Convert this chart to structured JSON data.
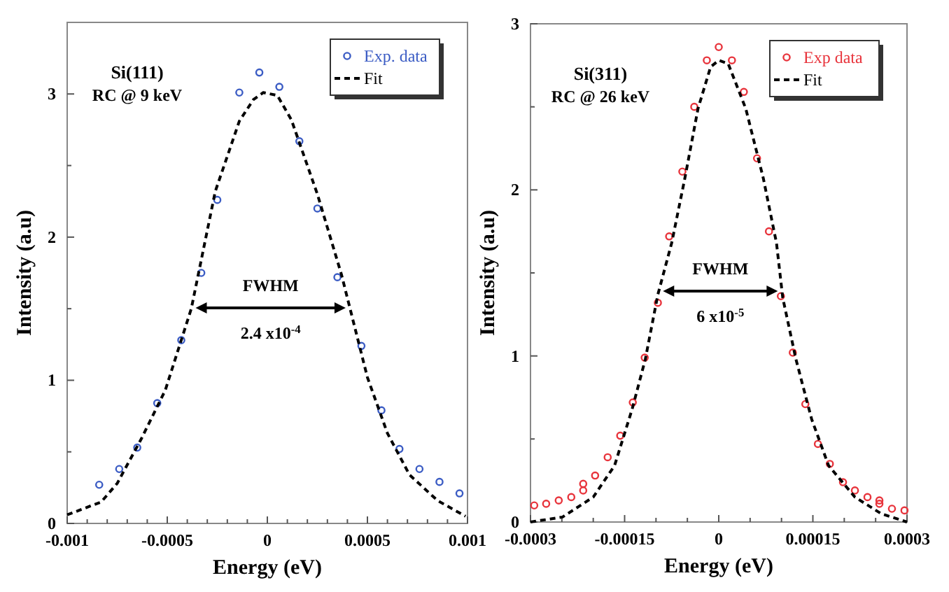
{
  "chart_data": [
    {
      "type": "scatter",
      "xlabel": "Energy (eV)",
      "ylabel": "Intensity (a.u)",
      "xlim": [
        -0.001,
        0.001
      ],
      "ylim": [
        0,
        3.5
      ],
      "xticks": [
        -0.001,
        {
          "value": -0.0009,
          "label": null
        },
        {
          "value": -0.0008,
          "label": null
        },
        {
          "value": -0.0007,
          "label": null
        },
        {
          "value": -0.0006,
          "label": null
        },
        -0.0005,
        {
          "value": -0.0004,
          "label": null
        },
        {
          "value": -0.0003,
          "label": null
        },
        {
          "value": -0.0002,
          "label": null
        },
        {
          "value": -0.0001,
          "label": null
        },
        0,
        {
          "value": 0.0001,
          "label": null
        },
        {
          "value": 0.0002,
          "label": null
        },
        {
          "value": 0.0003,
          "label": null
        },
        {
          "value": 0.0004,
          "label": null
        },
        0.0005,
        {
          "value": 0.0006,
          "label": null
        },
        {
          "value": 0.0007,
          "label": null
        },
        {
          "value": 0.0008,
          "label": null
        },
        {
          "value": 0.0009,
          "label": null
        },
        0.001
      ],
      "yticks": [
        0,
        {
          "value": 0.5,
          "label": null
        },
        1,
        {
          "value": 1.5,
          "label": null
        },
        2,
        {
          "value": 2.5,
          "label": null
        },
        3
      ],
      "grid": false,
      "legend": "top right",
      "annotations": [
        "Si(111)",
        "RC @ 9 keV",
        "FWHM",
        "2.4 x10$^{-4}$"
      ],
      "series": [
        {
          "name": "Exp. data",
          "marker": "circle",
          "color": "#3b5cc4",
          "x": [
            -0.00084,
            -0.00074,
            -0.00065,
            -0.00055,
            -0.00043,
            -0.00033,
            -0.00025,
            -0.00014,
            -4e-05,
            6e-05,
            0.00016,
            0.00025,
            0.00035,
            0.00047,
            0.00057,
            0.00066,
            0.00076,
            0.00086,
            0.00096
          ],
          "values": [
            0.27,
            0.38,
            0.53,
            0.84,
            1.28,
            1.75,
            2.26,
            3.01,
            3.15,
            3.05,
            2.67,
            2.2,
            1.72,
            1.24,
            0.79,
            0.52,
            0.38,
            0.29,
            0.21
          ]
        },
        {
          "name": "Fit",
          "type": "line",
          "line_style": "dashed",
          "color": "#000000",
          "x": [
            -0.001,
            -0.00083,
            -0.00075,
            -0.00063,
            -0.00051,
            -0.00038,
            -0.00026,
            -0.00014,
            -7e-05,
            -2e-05,
            5e-05,
            0.00012,
            0.00025,
            0.00037,
            0.0005,
            0.0006,
            0.00071,
            0.00085,
            0.00099
          ],
          "values": [
            0.06,
            0.15,
            0.28,
            0.59,
            0.93,
            1.5,
            2.32,
            2.81,
            2.96,
            3.01,
            2.99,
            2.82,
            2.3,
            1.74,
            1.02,
            0.63,
            0.34,
            0.16,
            0.05
          ]
        }
      ]
    },
    {
      "type": "scatter",
      "xlabel": "Energy (eV)",
      "ylabel": "Intensity (a.u)",
      "xlim": [
        -0.0003,
        0.0003
      ],
      "ylim": [
        0,
        3
      ],
      "xticks": [
        -0.0003,
        {
          "value": -0.00025,
          "label": null
        },
        {
          "value": -0.0002,
          "label": null
        },
        -0.00015,
        {
          "value": -0.0001,
          "label": null
        },
        {
          "value": -5e-05,
          "label": null
        },
        0,
        {
          "value": 5e-05,
          "label": null
        },
        {
          "value": 0.0001,
          "label": null
        },
        0.00015,
        {
          "value": 0.0002,
          "label": null
        },
        {
          "value": 0.00025,
          "label": null
        },
        0.0003
      ],
      "yticks": [
        0,
        {
          "value": 0.5,
          "label": null
        },
        1,
        {
          "value": 1.5,
          "label": null
        },
        2,
        {
          "value": 2.5,
          "label": null
        },
        3
      ],
      "grid": false,
      "legend": "top right",
      "annotations": [
        "Si(311)",
        "RC @ 26 keV",
        "FWHM",
        "6 x10$^{-5}$"
      ],
      "series": [
        {
          "name": "Exp data",
          "marker": "circle",
          "color": "#e8343c",
          "x": [
            -0.000294,
            -0.000275,
            -0.000255,
            -0.000235,
            -0.000216,
            -0.000216,
            -0.000197,
            -0.000177,
            -0.000157,
            -0.000137,
            -0.000118,
            -9.7e-05,
            -7.9e-05,
            -5.8e-05,
            -3.9e-05,
            -1.9e-05,
            0,
            2.1e-05,
            4e-05,
            6.1e-05,
            8e-05,
            9.9e-05,
            0.000118,
            0.000138,
            0.000158,
            0.000177,
            0.000198,
            0.000217,
            0.000237,
            0.000256,
            0.000256,
            0.000276,
            0.000296
          ],
          "values": [
            0.1,
            0.11,
            0.13,
            0.15,
            0.19,
            0.23,
            0.28,
            0.39,
            0.52,
            0.72,
            0.99,
            1.32,
            1.72,
            2.11,
            2.5,
            2.78,
            2.86,
            2.78,
            2.59,
            2.19,
            1.75,
            1.36,
            1.02,
            0.71,
            0.47,
            0.35,
            0.24,
            0.19,
            0.15,
            0.13,
            0.11,
            0.08,
            0.07
          ]
        },
        {
          "name": "Fit",
          "type": "line",
          "line_style": "dashed",
          "color": "#000000",
          "x": [
            -0.0003,
            -0.000249,
            -0.0002,
            -0.000166,
            -0.000138,
            -0.000117,
            -9.7e-05,
            -7.5e-05,
            -5.4e-05,
            -3.3e-05,
            -1.3e-05,
            0,
            1.5e-05,
            4.3e-05,
            7.1e-05,
            9.2e-05,
            0.000102,
            0.000123,
            0.000148,
            0.000175,
            0.000217,
            0.000259,
            0.0003
          ],
          "values": [
            0,
            0.03,
            0.15,
            0.34,
            0.68,
            0.98,
            1.37,
            1.68,
            2.07,
            2.49,
            2.74,
            2.78,
            2.76,
            2.49,
            2.07,
            1.68,
            1.35,
            0.98,
            0.62,
            0.34,
            0.15,
            0.05,
            0
          ]
        }
      ]
    }
  ]
}
